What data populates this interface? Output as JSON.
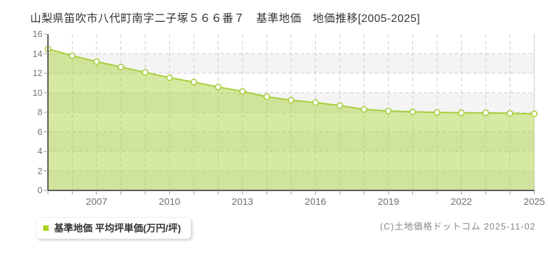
{
  "title": "山梨県笛吹市八代町南字二子塚５６６番７　基準地価　地価推移[2005-2025]",
  "legend": {
    "label": "基準地価 平均坪単価(万円/坪)"
  },
  "footer": {
    "copyright": "(C)土地価格ドットコム 2025-11-02"
  },
  "chart_data": {
    "type": "area",
    "title": "山梨県笛吹市八代町南字二子塚５６６番７ 基準地価 地価推移[2005-2025]",
    "x": [
      2005,
      2006,
      2007,
      2008,
      2009,
      2010,
      2011,
      2012,
      2013,
      2014,
      2015,
      2016,
      2017,
      2018,
      2019,
      2020,
      2021,
      2022,
      2023,
      2024,
      2025
    ],
    "series": [
      {
        "name": "基準地価 平均坪単価(万円/坪)",
        "values": [
          14.5,
          13.8,
          13.2,
          12.65,
          12.1,
          11.55,
          11.1,
          10.6,
          10.15,
          9.6,
          9.25,
          9.0,
          8.7,
          8.3,
          8.15,
          8.05,
          8.0,
          7.95,
          7.95,
          7.9,
          7.85
        ]
      }
    ],
    "unit": "万円/坪",
    "ylim": [
      0,
      16
    ],
    "ytick_step": 2,
    "xtick_labels": [
      "2007",
      "2010",
      "2013",
      "2016",
      "2019",
      "2022",
      "2025"
    ],
    "grid": "dashed",
    "legend_position": "bottom-left",
    "colors": {
      "accent": "#a6ce38",
      "legend_swatch": "#a8d420",
      "area_fill": "rgba(164,207,47,0.45)",
      "marker_fill": "#ffffff",
      "grid": "#cccccc",
      "band": "#f4f4f4",
      "axis": "#5a5a5a",
      "tick": "#999999",
      "right_border": "#c8c8c8"
    }
  }
}
